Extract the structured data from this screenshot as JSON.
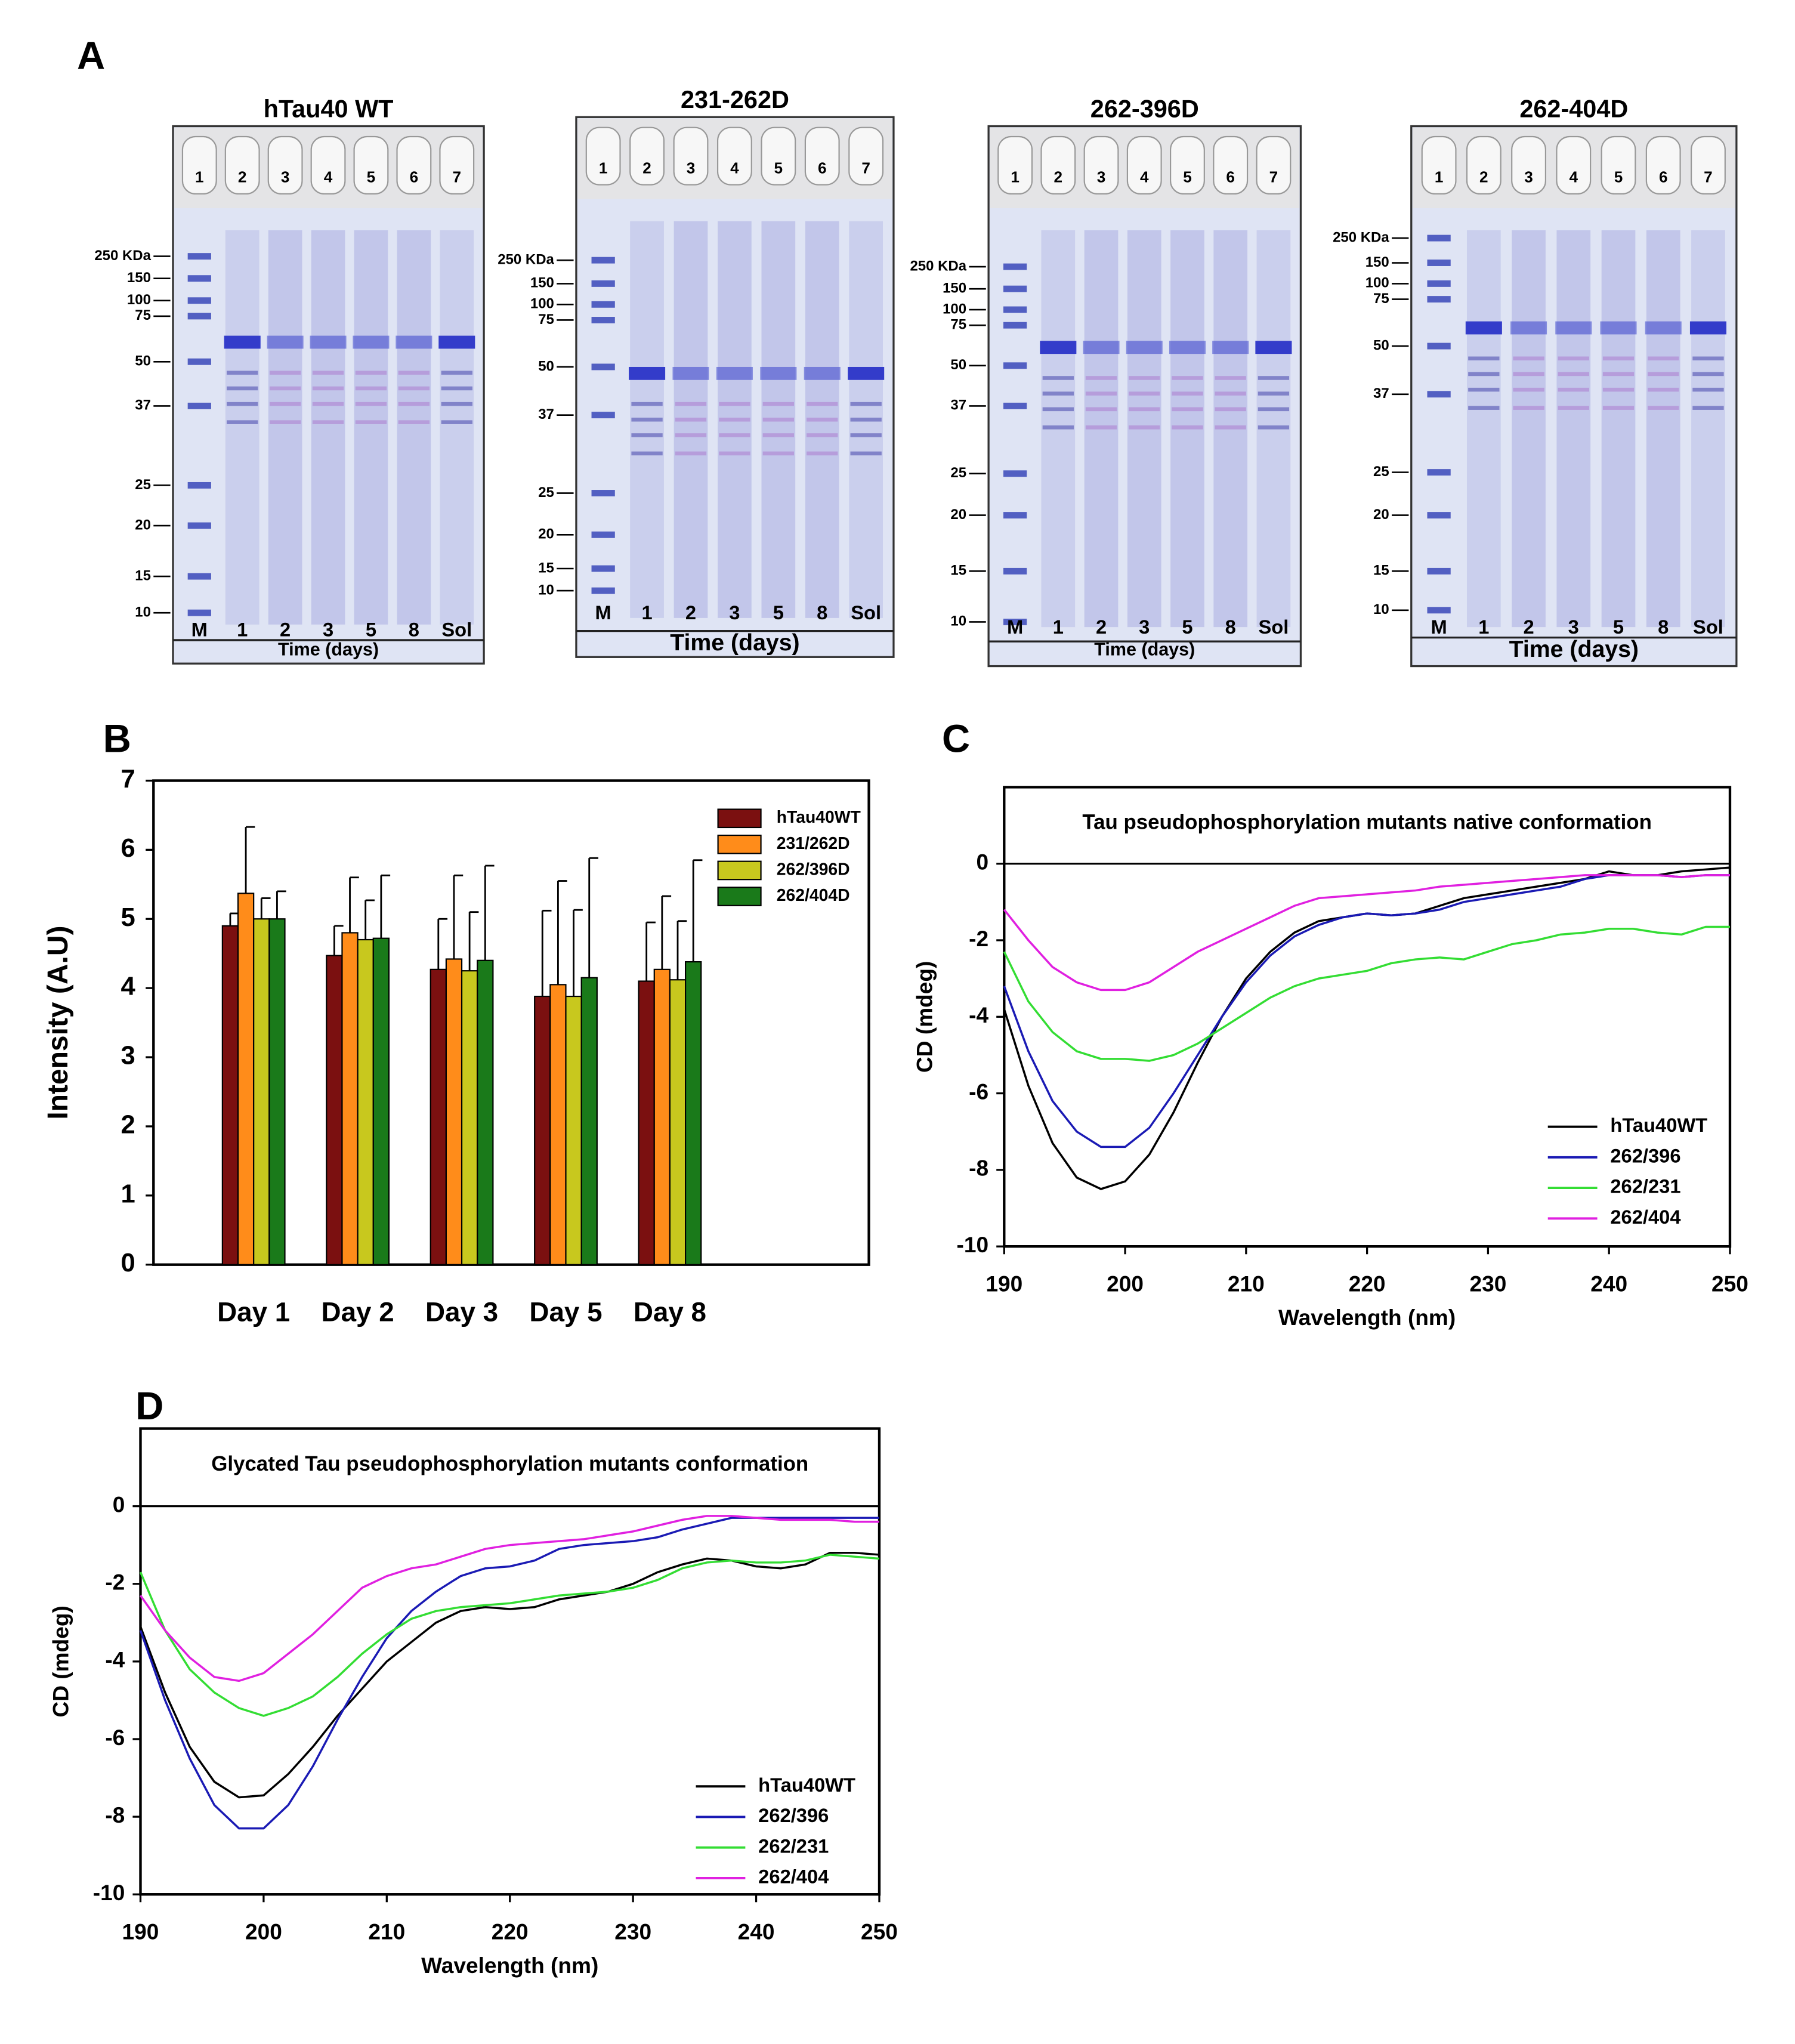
{
  "panel_a": {
    "label": "A",
    "gels": [
      {
        "title": "hTau40 WT",
        "wells": [
          "1",
          "2",
          "3",
          "4",
          "5",
          "6",
          "7"
        ],
        "markers": [
          "250 KDa",
          "150",
          "100",
          "75",
          "50",
          "37",
          "25",
          "20",
          "15",
          "10"
        ],
        "lanes": [
          "M",
          "1",
          "2",
          "3",
          "5",
          "8",
          "Sol"
        ],
        "xlabel": "Time (days)"
      },
      {
        "title": "231-262D",
        "wells": [
          "1",
          "2",
          "3",
          "4",
          "5",
          "6",
          "7"
        ],
        "markers": [
          "250 KDa",
          "150",
          "100",
          "75",
          "50",
          "37",
          "25",
          "20",
          "15",
          "10"
        ],
        "lanes": [
          "M",
          "1",
          "2",
          "3",
          "5",
          "8",
          "Sol"
        ],
        "xlabel": "Time (days)"
      },
      {
        "title": "262-396D",
        "wells": [
          "1",
          "2",
          "3",
          "4",
          "5",
          "6",
          "7"
        ],
        "markers": [
          "250 KDa",
          "150",
          "100",
          "75",
          "50",
          "37",
          "25",
          "20",
          "15",
          "10"
        ],
        "lanes": [
          "M",
          "1",
          "2",
          "3",
          "5",
          "8",
          "Sol"
        ],
        "xlabel": "Time (days)"
      },
      {
        "title": "262-404D",
        "wells": [
          "1",
          "2",
          "3",
          "4",
          "5",
          "6",
          "7"
        ],
        "markers": [
          "250 KDa",
          "150",
          "100",
          "75",
          "50",
          "37",
          "25",
          "20",
          "15",
          "10"
        ],
        "lanes": [
          "M",
          "1",
          "2",
          "3",
          "5",
          "8",
          "Sol"
        ],
        "xlabel": "Time (days)"
      }
    ]
  },
  "chart_data": [
    {
      "panel": "B",
      "type": "bar",
      "ylabel": "Intensity (A.U)",
      "categories": [
        "Day 1",
        "Day 2",
        "Day 3",
        "Day 5",
        "Day 8"
      ],
      "series": [
        {
          "name": "hTau40WT",
          "color": "#7b1010",
          "values": [
            4.9,
            4.47,
            4.27,
            3.88,
            4.1
          ],
          "errors": [
            0.18,
            0.43,
            0.73,
            1.24,
            0.85
          ]
        },
        {
          "name": "231/262D",
          "color": "#ff8c1a",
          "values": [
            5.37,
            4.8,
            4.42,
            4.05,
            4.27
          ],
          "errors": [
            0.96,
            0.8,
            1.21,
            1.5,
            1.06
          ]
        },
        {
          "name": "262/396D",
          "color": "#c8c81e",
          "values": [
            5.0,
            4.7,
            4.25,
            3.88,
            4.12
          ],
          "errors": [
            0.3,
            0.57,
            0.85,
            1.25,
            0.85
          ]
        },
        {
          "name": "262/404D",
          "color": "#1a7a1a",
          "values": [
            5.0,
            4.72,
            4.4,
            4.15,
            4.38
          ],
          "errors": [
            0.4,
            0.91,
            1.37,
            1.73,
            1.47
          ]
        }
      ],
      "ylim": [
        0,
        7
      ],
      "yticks": [
        0,
        1,
        2,
        3,
        4,
        5,
        6,
        7
      ],
      "legend": "upper right"
    },
    {
      "panel": "C",
      "type": "line",
      "title": "Tau pseudophosphorylation mutants native conformation",
      "xlabel": "Wavelength (nm)",
      "ylabel": "CD (mdeg)",
      "x": [
        190,
        192,
        194,
        196,
        198,
        200,
        202,
        204,
        206,
        208,
        210,
        212,
        214,
        216,
        218,
        220,
        222,
        224,
        226,
        228,
        230,
        232,
        234,
        236,
        238,
        240,
        242,
        244,
        246,
        248,
        250
      ],
      "series": [
        {
          "name": "hTau40WT",
          "color": "#000000",
          "values": [
            -3.8,
            -5.8,
            -7.3,
            -8.2,
            -8.5,
            -8.3,
            -7.6,
            -6.5,
            -5.2,
            -4.0,
            -3.0,
            -2.3,
            -1.8,
            -1.5,
            -1.4,
            -1.3,
            -1.35,
            -1.3,
            -1.1,
            -0.9,
            -0.8,
            -0.7,
            -0.6,
            -0.5,
            -0.4,
            -0.2,
            -0.3,
            -0.3,
            -0.2,
            -0.15,
            -0.1
          ]
        },
        {
          "name": "262/396",
          "color": "#1a1ab4",
          "values": [
            -3.2,
            -4.9,
            -6.2,
            -7.0,
            -7.4,
            -7.4,
            -6.9,
            -6.0,
            -5.0,
            -4.0,
            -3.1,
            -2.4,
            -1.9,
            -1.6,
            -1.4,
            -1.3,
            -1.35,
            -1.3,
            -1.2,
            -1.0,
            -0.9,
            -0.8,
            -0.7,
            -0.6,
            -0.4,
            -0.3,
            -0.3,
            -0.3,
            -0.35,
            -0.3,
            -0.3
          ]
        },
        {
          "name": "262/231",
          "color": "#33dd33",
          "values": [
            -2.3,
            -3.6,
            -4.4,
            -4.9,
            -5.1,
            -5.1,
            -5.15,
            -5.0,
            -4.7,
            -4.3,
            -3.9,
            -3.5,
            -3.2,
            -3.0,
            -2.9,
            -2.8,
            -2.6,
            -2.5,
            -2.45,
            -2.5,
            -2.3,
            -2.1,
            -2.0,
            -1.85,
            -1.8,
            -1.7,
            -1.7,
            -1.8,
            -1.85,
            -1.65,
            -1.65
          ]
        },
        {
          "name": "262/404",
          "color": "#e020e0",
          "values": [
            -1.2,
            -2.0,
            -2.7,
            -3.1,
            -3.3,
            -3.3,
            -3.1,
            -2.7,
            -2.3,
            -2.0,
            -1.7,
            -1.4,
            -1.1,
            -0.9,
            -0.85,
            -0.8,
            -0.75,
            -0.7,
            -0.6,
            -0.55,
            -0.5,
            -0.45,
            -0.4,
            -0.35,
            -0.3,
            -0.3,
            -0.3,
            -0.3,
            -0.35,
            -0.3,
            -0.3
          ]
        }
      ],
      "xlim": [
        190,
        250
      ],
      "xticks": [
        190,
        200,
        210,
        220,
        230,
        240,
        250
      ],
      "ylim": [
        -10,
        2
      ],
      "yticks": [
        -10,
        -8,
        -6,
        -4,
        -2,
        0
      ],
      "legend": "lower right"
    },
    {
      "panel": "D",
      "type": "line",
      "title": "Glycated Tau pseudophosphorylation mutants conformation",
      "xlabel": "Wavelength (nm)",
      "ylabel": "CD (mdeg)",
      "x": [
        190,
        192,
        194,
        196,
        198,
        200,
        202,
        204,
        206,
        208,
        210,
        212,
        214,
        216,
        218,
        220,
        222,
        224,
        226,
        228,
        230,
        232,
        234,
        236,
        238,
        240,
        242,
        244,
        246,
        248,
        250
      ],
      "series": [
        {
          "name": "hTau40WT",
          "color": "#000000",
          "values": [
            -3.1,
            -4.8,
            -6.2,
            -7.1,
            -7.5,
            -7.45,
            -6.9,
            -6.2,
            -5.4,
            -4.7,
            -4.0,
            -3.5,
            -3.0,
            -2.7,
            -2.6,
            -2.65,
            -2.6,
            -2.4,
            -2.3,
            -2.2,
            -2.0,
            -1.7,
            -1.5,
            -1.35,
            -1.4,
            -1.55,
            -1.6,
            -1.5,
            -1.2,
            -1.2,
            -1.25
          ]
        },
        {
          "name": "262/396",
          "color": "#1a1ab4",
          "values": [
            -3.2,
            -5.0,
            -6.5,
            -7.7,
            -8.3,
            -8.3,
            -7.7,
            -6.7,
            -5.5,
            -4.4,
            -3.4,
            -2.7,
            -2.2,
            -1.8,
            -1.6,
            -1.55,
            -1.4,
            -1.1,
            -1.0,
            -0.95,
            -0.9,
            -0.8,
            -0.6,
            -0.45,
            -0.3,
            -0.3,
            -0.3,
            -0.3,
            -0.3,
            -0.3,
            -0.3
          ]
        },
        {
          "name": "262/231",
          "color": "#33dd33",
          "values": [
            -1.7,
            -3.2,
            -4.2,
            -4.8,
            -5.2,
            -5.4,
            -5.2,
            -4.9,
            -4.4,
            -3.8,
            -3.3,
            -2.9,
            -2.7,
            -2.6,
            -2.55,
            -2.5,
            -2.4,
            -2.3,
            -2.25,
            -2.2,
            -2.1,
            -1.9,
            -1.6,
            -1.45,
            -1.4,
            -1.45,
            -1.45,
            -1.4,
            -1.25,
            -1.3,
            -1.35
          ]
        },
        {
          "name": "262/404",
          "color": "#e020e0",
          "values": [
            -2.3,
            -3.2,
            -3.9,
            -4.4,
            -4.5,
            -4.3,
            -3.8,
            -3.3,
            -2.7,
            -2.1,
            -1.8,
            -1.6,
            -1.5,
            -1.3,
            -1.1,
            -1.0,
            -0.95,
            -0.9,
            -0.85,
            -0.75,
            -0.65,
            -0.5,
            -0.35,
            -0.25,
            -0.25,
            -0.3,
            -0.35,
            -0.35,
            -0.35,
            -0.4,
            -0.4
          ]
        }
      ],
      "xlim": [
        190,
        250
      ],
      "xticks": [
        190,
        200,
        210,
        220,
        230,
        240,
        250
      ],
      "ylim": [
        -10,
        2
      ],
      "yticks": [
        -10,
        -8,
        -6,
        -4,
        -2,
        0
      ],
      "legend": "lower right"
    }
  ]
}
